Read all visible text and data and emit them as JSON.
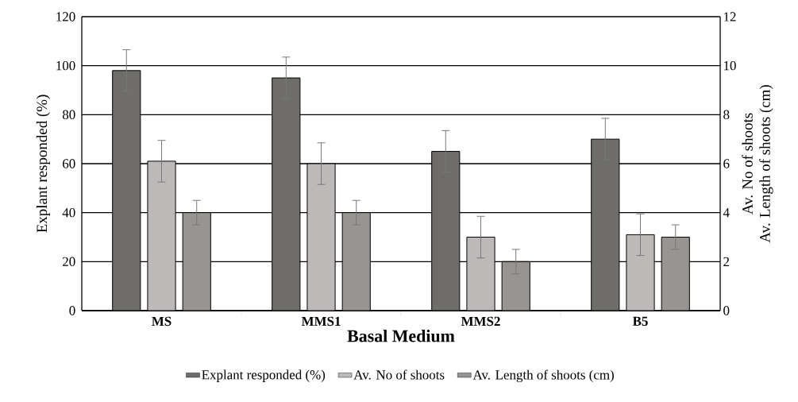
{
  "chart_data": {
    "type": "bar",
    "xlabel": "Basal Medium",
    "ylabel": "Explant responded (%)",
    "y2label": "Av. No of shoots\nAv. Length of shoots (cm)",
    "categories": [
      "MS",
      "MMS1",
      "MMS2",
      "B5"
    ],
    "series": [
      {
        "name": "Explant responded (%)",
        "color": "#6e6d69",
        "values": [
          98,
          95,
          65,
          70
        ],
        "errors": [
          8.5,
          8.5,
          8.5,
          8.5
        ]
      },
      {
        "name": "Av. No of shoots",
        "color": "#bcb9b8",
        "values": [
          6.1,
          6.0,
          3.0,
          3.1
        ],
        "errors": [
          0.85,
          0.85,
          0.85,
          0.85
        ],
        "axis": "y2"
      },
      {
        "name": "Av. Length of shoots (cm)",
        "color": "#979491",
        "values": [
          4.0,
          4.0,
          2.0,
          3.0
        ],
        "errors": [
          0.5,
          0.5,
          0.5,
          0.5
        ],
        "axis": "y2"
      }
    ],
    "ylim": [
      0,
      120
    ],
    "yticks": [
      0,
      20,
      40,
      60,
      80,
      100,
      120
    ],
    "y2lim": [
      0,
      12
    ],
    "y2ticks": [
      0,
      2,
      4,
      6,
      8,
      10,
      12
    ],
    "grid": "y",
    "legend": "bottom"
  }
}
